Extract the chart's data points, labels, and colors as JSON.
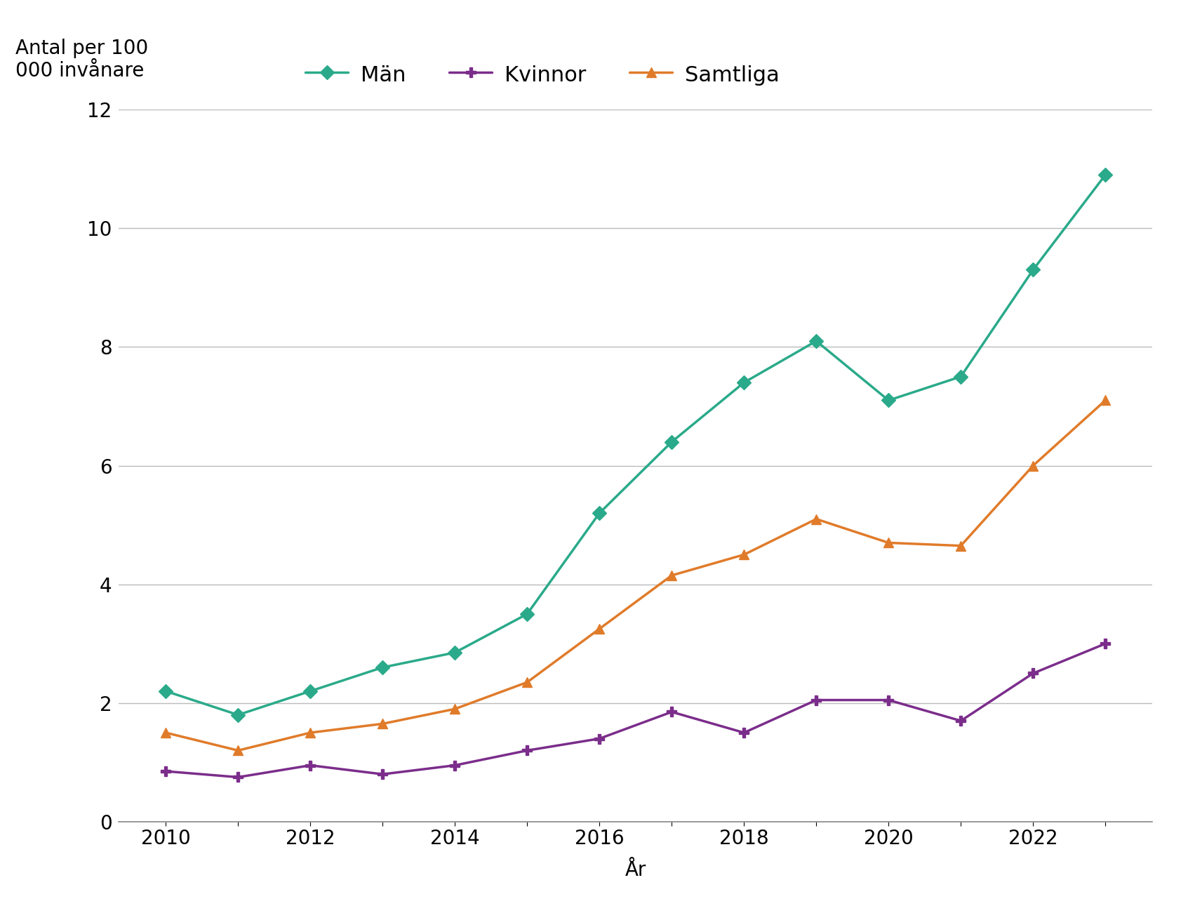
{
  "years": [
    2010,
    2011,
    2012,
    2013,
    2014,
    2015,
    2016,
    2017,
    2018,
    2019,
    2020,
    2021,
    2022,
    2023
  ],
  "man": [
    2.2,
    1.8,
    2.2,
    2.6,
    2.85,
    3.5,
    5.2,
    6.4,
    7.4,
    8.1,
    7.1,
    7.5,
    9.3,
    10.9
  ],
  "kvinnor": [
    0.85,
    0.75,
    0.95,
    0.8,
    0.95,
    1.2,
    1.4,
    1.85,
    1.5,
    2.05,
    2.05,
    1.7,
    2.5,
    3.0
  ],
  "samtliga": [
    1.5,
    1.2,
    1.5,
    1.65,
    1.9,
    2.35,
    3.25,
    4.15,
    4.5,
    5.1,
    4.7,
    4.65,
    6.0,
    7.1
  ],
  "man_color": "#2aaa8a",
  "kvinnor_color": "#7b2d8b",
  "samtliga_color": "#e07b2a",
  "man_label": "Män",
  "kvinnor_label": "Kvinnor",
  "samtliga_label": "Samtliga",
  "ylabel_line1": "Antal per 100",
  "ylabel_line2": "000 invånare",
  "xlabel": "År",
  "ylim": [
    0,
    12
  ],
  "yticks": [
    0,
    2,
    4,
    6,
    8,
    10,
    12
  ],
  "xtick_labels": [
    "2010",
    "",
    "2012",
    "",
    "2014",
    "",
    "2016",
    "",
    "2018",
    "",
    "2020",
    "",
    "2022",
    ""
  ],
  "background_color": "#ffffff",
  "grid_color": "#bbbbbb",
  "linewidth": 2.5,
  "markersize": 10,
  "tick_fontsize": 20,
  "label_fontsize": 20,
  "legend_fontsize": 22
}
